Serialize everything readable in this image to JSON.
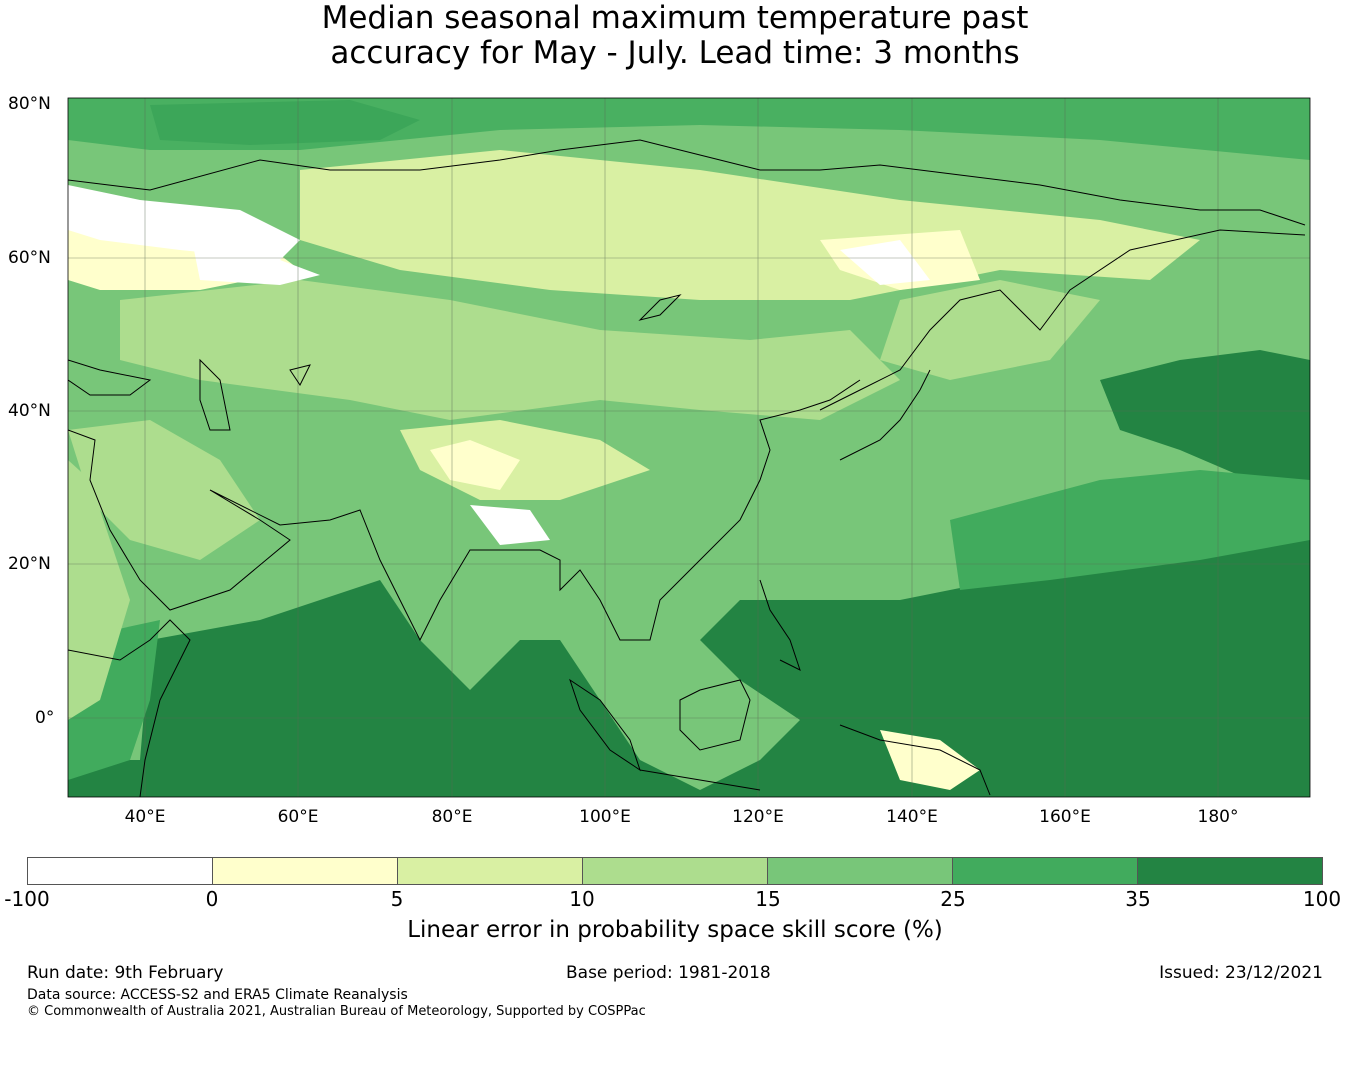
{
  "title": [
    "Median seasonal maximum temperature past",
    "accuracy for May - July. Lead time: 3 months"
  ],
  "latitude_labels": [
    "80°N",
    "60°N",
    "40°N",
    "20°N",
    "0°"
  ],
  "longitude_labels": [
    "40°E",
    "60°E",
    "80°E",
    "100°E",
    "120°E",
    "140°E",
    "160°E",
    "180°"
  ],
  "colorbar": {
    "label": "Linear error in probability space skill score (%)",
    "ticks": [
      "-100",
      "0",
      "5",
      "10",
      "15",
      "25",
      "35",
      "100"
    ],
    "colors": [
      "#ffffff",
      "#ffffcc",
      "#d9f0a3",
      "#addd8e",
      "#78c679",
      "#41ab5d",
      "#238443"
    ]
  },
  "footer": {
    "run_date": "Run date: 9th February",
    "base_period": "Base period: 1981-2018",
    "issued": "Issued: 23/12/2021",
    "data_source": "Data source: ACCESS-S2 and ERA5 Climate Reanalysis",
    "copyright": "© Commonwealth of Australia 2021, Australian Bureau of Meteorology, Supported by COSPPac"
  }
}
